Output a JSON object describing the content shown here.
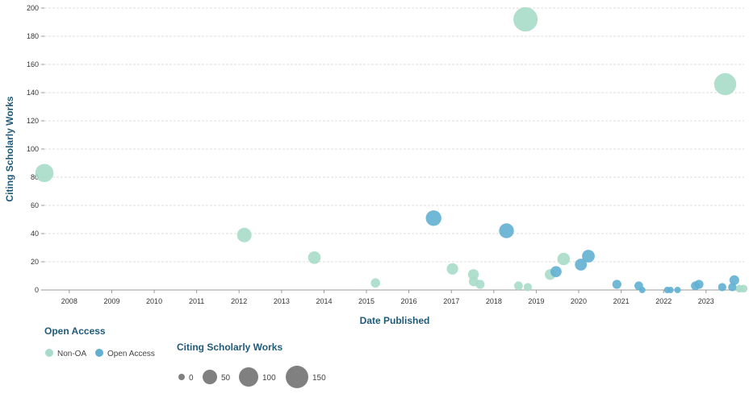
{
  "chart_data": {
    "type": "scatter",
    "title": "",
    "xlabel": "Date Published",
    "ylabel": "Citing Scholarly Works",
    "xlim": [
      "2007-06-01",
      "2023-11-25"
    ],
    "ylim": [
      0,
      200
    ],
    "y_ticks": [
      0,
      20,
      40,
      60,
      80,
      100,
      120,
      140,
      160,
      180,
      200
    ],
    "x_ticks": [
      "2008",
      "2009",
      "2010",
      "2011",
      "2012",
      "2013",
      "2014",
      "2015",
      "2016",
      "2017",
      "2018",
      "2019",
      "2020",
      "2021",
      "2022",
      "2023"
    ],
    "grid": true,
    "size_encodes": "Citing Scholarly Works",
    "series": [
      {
        "name": "Non-OA",
        "color": "#a8dcc9",
        "points": [
          {
            "date": "2007-06-01",
            "y": 83
          },
          {
            "date": "2012-02-15",
            "y": 39
          },
          {
            "date": "2013-10-10",
            "y": 23
          },
          {
            "date": "2015-03-20",
            "y": 5
          },
          {
            "date": "2017-01-10",
            "y": 15
          },
          {
            "date": "2017-07-10",
            "y": 11
          },
          {
            "date": "2017-07-12",
            "y": 6
          },
          {
            "date": "2017-09-05",
            "y": 4
          },
          {
            "date": "2018-08-01",
            "y": 3
          },
          {
            "date": "2018-10-01",
            "y": 192
          },
          {
            "date": "2018-10-20",
            "y": 2
          },
          {
            "date": "2019-05-01",
            "y": 11
          },
          {
            "date": "2019-08-25",
            "y": 22
          },
          {
            "date": "2023-06-15",
            "y": 146
          },
          {
            "date": "2023-10-15",
            "y": 1
          },
          {
            "date": "2023-11-20",
            "y": 1
          }
        ]
      },
      {
        "name": "Open Access",
        "color": "#62b0d1",
        "points": [
          {
            "date": "2016-08-01",
            "y": 51
          },
          {
            "date": "2018-04-20",
            "y": 42
          },
          {
            "date": "2019-06-20",
            "y": 13
          },
          {
            "date": "2020-01-20",
            "y": 18
          },
          {
            "date": "2020-03-25",
            "y": 24
          },
          {
            "date": "2020-11-25",
            "y": 4
          },
          {
            "date": "2021-06-01",
            "y": 3
          },
          {
            "date": "2021-07-01",
            "y": 0
          },
          {
            "date": "2022-02-01",
            "y": 0
          },
          {
            "date": "2022-03-01",
            "y": 0
          },
          {
            "date": "2022-05-01",
            "y": 0
          },
          {
            "date": "2022-10-01",
            "y": 3
          },
          {
            "date": "2022-11-01",
            "y": 4
          },
          {
            "date": "2023-05-20",
            "y": 2
          },
          {
            "date": "2023-08-15",
            "y": 2
          },
          {
            "date": "2023-09-01",
            "y": 7
          }
        ]
      }
    ]
  },
  "legend": {
    "open_access_title": "Open Access",
    "items": [
      {
        "label": "Non-OA",
        "color": "#a8dcc9"
      },
      {
        "label": "Open Access",
        "color": "#62b0d1"
      }
    ],
    "size_title": "Citing Scholarly Works",
    "size_items": [
      {
        "label": "0",
        "value": 0
      },
      {
        "label": "50",
        "value": 50
      },
      {
        "label": "100",
        "value": 100
      },
      {
        "label": "150",
        "value": 150
      }
    ],
    "size_color": "#808080"
  }
}
